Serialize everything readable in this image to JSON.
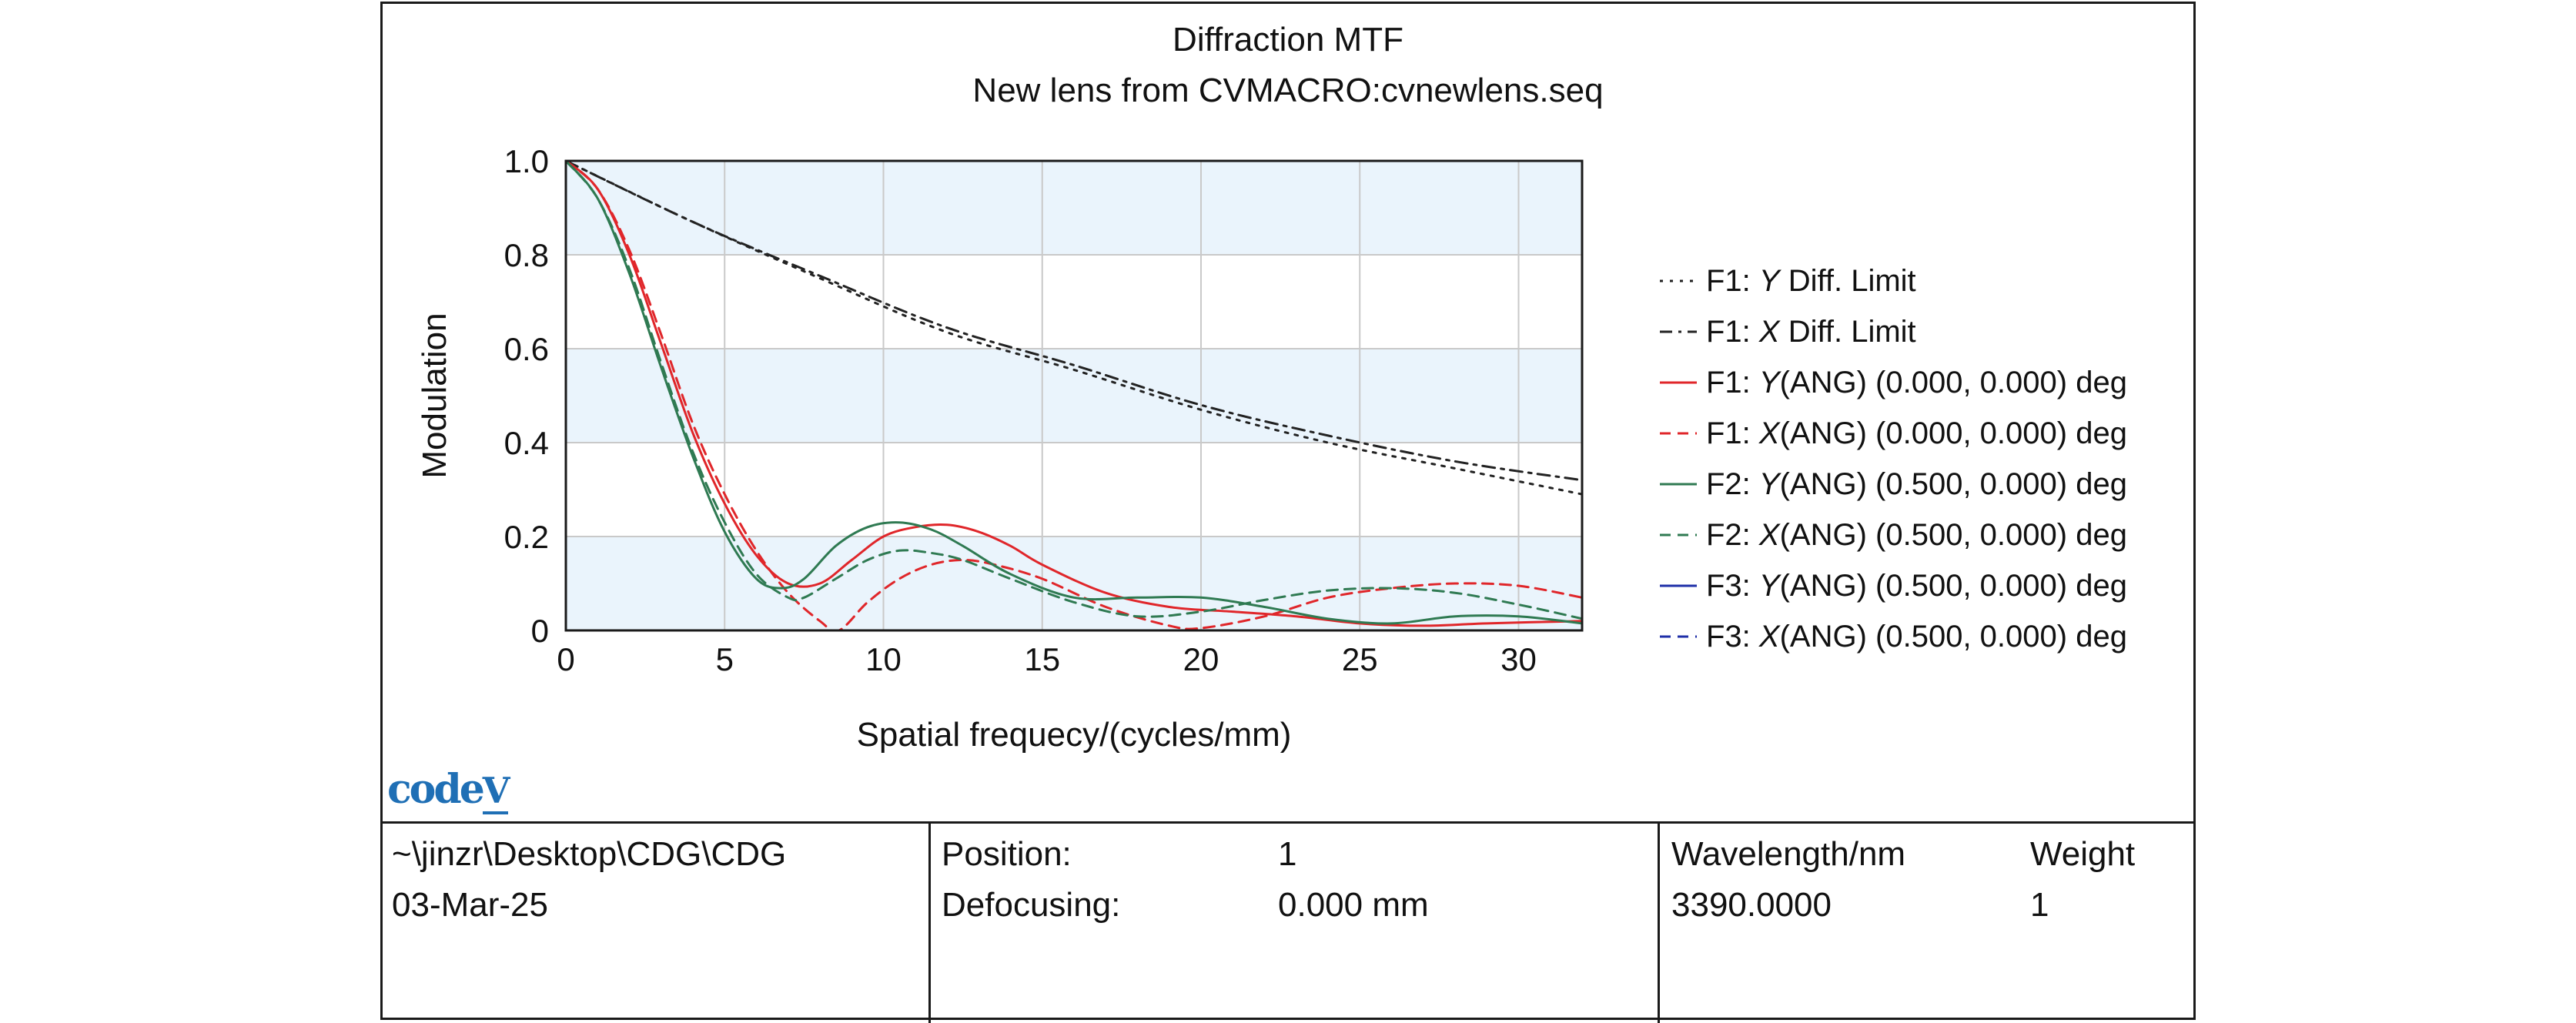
{
  "chart_data": {
    "type": "line",
    "title": "Diffraction MTF",
    "subtitle": "New lens from CVMACRO:cvnewlens.seq",
    "xlabel": "Spatial frequecy/(cycles/mm)",
    "ylabel": "Modulation",
    "xlim": [
      0,
      32
    ],
    "ylim": [
      0,
      1.0
    ],
    "x_ticks": [
      "0",
      "5",
      "10",
      "15",
      "20",
      "25",
      "30"
    ],
    "y_ticks": [
      "0",
      "0.2",
      "0.4",
      "0.6",
      "0.8",
      "1.0"
    ],
    "grid": true,
    "legend_position": "right",
    "series": [
      {
        "name": "F1: Y Diff. Limit",
        "color": "#222222",
        "dash": "dot",
        "x": [
          0,
          4,
          8,
          12,
          16,
          20,
          24,
          28,
          32
        ],
        "y": [
          1.0,
          0.87,
          0.75,
          0.635,
          0.555,
          0.47,
          0.4,
          0.345,
          0.29
        ]
      },
      {
        "name": "F1: X Diff. Limit",
        "color": "#222222",
        "dash": "dashdot",
        "x": [
          0,
          4,
          8,
          12,
          16,
          20,
          24,
          28,
          32
        ],
        "y": [
          1.0,
          0.87,
          0.755,
          0.645,
          0.565,
          0.48,
          0.415,
          0.36,
          0.32
        ]
      },
      {
        "name": "F1: Y(ANG) (0.000, 0.000) deg",
        "color": "#e0262a",
        "dash": "solid",
        "x": [
          0,
          1,
          2,
          3,
          4,
          5,
          6,
          7,
          8,
          9,
          10,
          11,
          12,
          13,
          14,
          15,
          17,
          19,
          21,
          23,
          25,
          27,
          29,
          32
        ],
        "y": [
          1.0,
          0.94,
          0.8,
          0.61,
          0.42,
          0.27,
          0.16,
          0.1,
          0.1,
          0.15,
          0.2,
          0.22,
          0.225,
          0.21,
          0.18,
          0.14,
          0.08,
          0.05,
          0.04,
          0.03,
          0.015,
          0.01,
          0.015,
          0.02
        ]
      },
      {
        "name": "F1: X(ANG) (0.000, 0.000) deg",
        "color": "#e0262a",
        "dash": "dash",
        "x": [
          0,
          1,
          2,
          3,
          4,
          5,
          6,
          7,
          8,
          8.6,
          9.5,
          10.5,
          11.5,
          12.5,
          13.5,
          15,
          17,
          19,
          20,
          22,
          24,
          26,
          28,
          30,
          32
        ],
        "y": [
          1.0,
          0.94,
          0.81,
          0.63,
          0.44,
          0.29,
          0.17,
          0.08,
          0.02,
          0.0,
          0.06,
          0.11,
          0.14,
          0.15,
          0.14,
          0.11,
          0.05,
          0.01,
          0.005,
          0.03,
          0.07,
          0.09,
          0.1,
          0.095,
          0.07
        ]
      },
      {
        "name": "F2: Y(ANG) (0.500, 0.000) deg",
        "color": "#2f7a52",
        "dash": "solid",
        "x": [
          0,
          1,
          2,
          3,
          4,
          5,
          6,
          6.8,
          7.5,
          8.5,
          9.5,
          10.5,
          11.5,
          12.5,
          14,
          16,
          18,
          20,
          22,
          24,
          26,
          28,
          30,
          32
        ],
        "y": [
          1.0,
          0.92,
          0.76,
          0.56,
          0.37,
          0.21,
          0.11,
          0.09,
          0.11,
          0.18,
          0.22,
          0.23,
          0.215,
          0.18,
          0.12,
          0.07,
          0.07,
          0.07,
          0.05,
          0.025,
          0.015,
          0.03,
          0.03,
          0.015
        ]
      },
      {
        "name": "F2: X(ANG) (0.500, 0.000) deg",
        "color": "#2f7a52",
        "dash": "dash",
        "x": [
          0,
          1,
          2,
          3,
          4,
          5,
          6,
          7,
          7.5,
          8.5,
          9.5,
          10.5,
          11.5,
          12.5,
          14,
          16,
          18,
          20,
          22,
          24,
          26,
          28,
          30,
          32
        ],
        "y": [
          1.0,
          0.92,
          0.77,
          0.57,
          0.38,
          0.23,
          0.12,
          0.07,
          0.07,
          0.11,
          0.15,
          0.17,
          0.165,
          0.15,
          0.11,
          0.06,
          0.03,
          0.04,
          0.065,
          0.085,
          0.09,
          0.08,
          0.055,
          0.025
        ]
      },
      {
        "name": "F3: Y(ANG) (0.500, 0.000) deg",
        "color": "#1f2fa8",
        "dash": "solid",
        "x": [],
        "y": []
      },
      {
        "name": "F3: X(ANG) (0.500, 0.000) deg",
        "color": "#1f2fa8",
        "dash": "dash",
        "x": [],
        "y": []
      }
    ]
  },
  "legend": [
    {
      "prefix": "F1: ",
      "axis": "Y",
      "rest": " Diff. Limit",
      "color": "#222222",
      "dash": "dot"
    },
    {
      "prefix": "F1: ",
      "axis": "X",
      "rest": " Diff. Limit",
      "color": "#222222",
      "dash": "dashdot"
    },
    {
      "prefix": "F1: ",
      "axis": "Y",
      "rest": "(ANG) (0.000, 0.000) deg",
      "color": "#e0262a",
      "dash": "solid"
    },
    {
      "prefix": "F1: ",
      "axis": "X",
      "rest": "(ANG) (0.000, 0.000) deg",
      "color": "#e0262a",
      "dash": "dash"
    },
    {
      "prefix": "F2: ",
      "axis": "Y",
      "rest": "(ANG) (0.500, 0.000) deg",
      "color": "#2f7a52",
      "dash": "solid"
    },
    {
      "prefix": "F2: ",
      "axis": "X",
      "rest": "(ANG) (0.500, 0.000) deg",
      "color": "#2f7a52",
      "dash": "dash"
    },
    {
      "prefix": "F3: ",
      "axis": "Y",
      "rest": "(ANG) (0.500, 0.000) deg",
      "color": "#1f2fa8",
      "dash": "solid"
    },
    {
      "prefix": "F3: ",
      "axis": "X",
      "rest": "(ANG) (0.500, 0.000) deg",
      "color": "#1f2fa8",
      "dash": "dash"
    }
  ],
  "colors": {
    "plot_band_light": "#eaf4fc",
    "plot_band_white": "#ffffff",
    "grid": "#c9c9c9",
    "logo": "#1f6fb5"
  },
  "logo": {
    "text": "code",
    "version": "V"
  },
  "footer": {
    "path": "~\\jinzr\\Desktop\\CDG\\CDG",
    "date": "03-Mar-25",
    "position_label": "Position:",
    "position_value": "1",
    "defocusing_label": "Defocusing:",
    "defocusing_value": "0.000 mm",
    "wavelength_label": "Wavelength/nm",
    "weight_label": "Weight",
    "wavelength_value": "3390.0000",
    "weight_value": "1"
  }
}
